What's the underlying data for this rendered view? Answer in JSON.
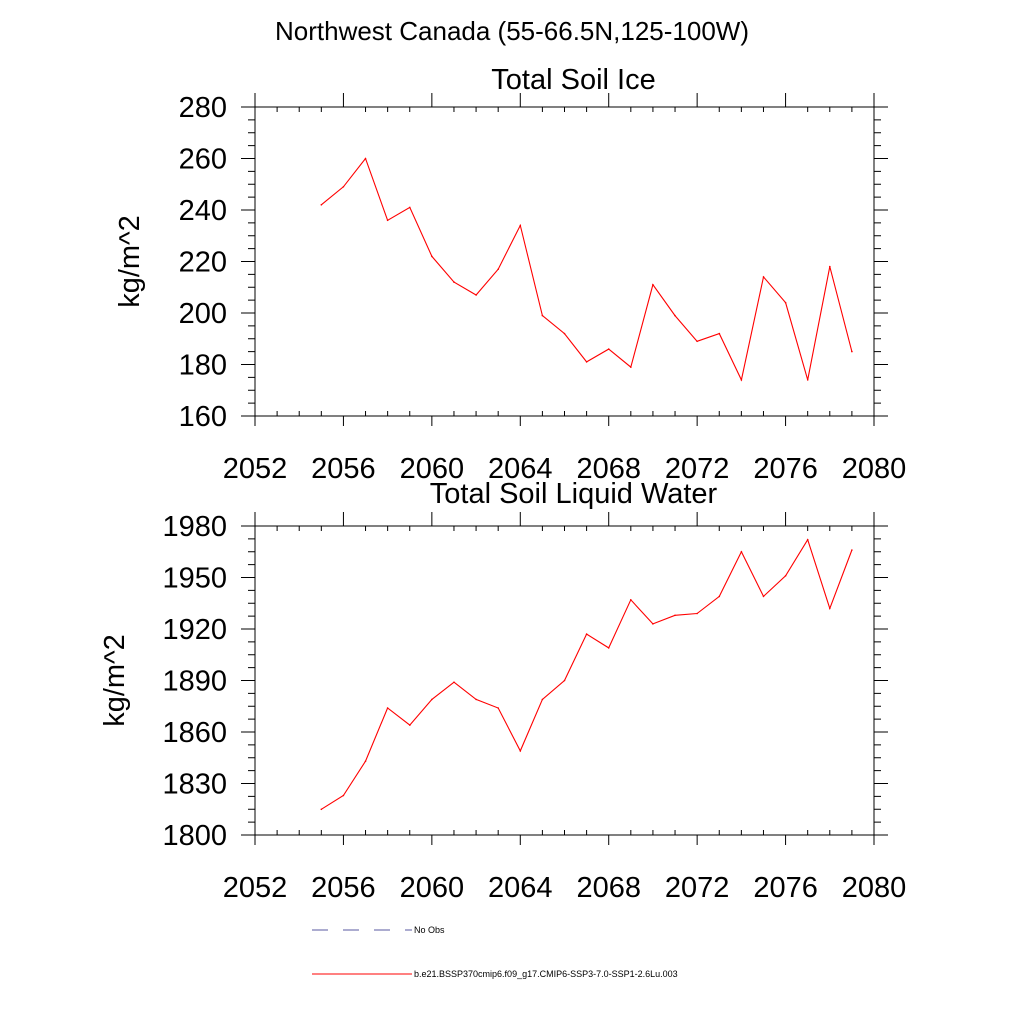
{
  "figure_title": "Northwest Canada (55-66.5N,125-100W)",
  "chart_data": [
    {
      "type": "line",
      "title": "Total Soil Ice",
      "xlabel": "",
      "ylabel": "kg/m^2",
      "xlim": [
        2052,
        2080
      ],
      "ylim": [
        160,
        280
      ],
      "xticks": [
        2052,
        2056,
        2060,
        2064,
        2068,
        2072,
        2076,
        2080
      ],
      "yticks": [
        160,
        180,
        200,
        220,
        240,
        260,
        280
      ],
      "x": [
        2055,
        2056,
        2057,
        2058,
        2059,
        2060,
        2061,
        2062,
        2063,
        2064,
        2065,
        2066,
        2067,
        2068,
        2069,
        2070,
        2071,
        2072,
        2073,
        2074,
        2075,
        2076,
        2077,
        2078,
        2079
      ],
      "series": [
        {
          "name": "b.e21.BSSP370cmip6.f09_g17.CMIP6-SSP3-7.0-SSP1-2.6Lu.003",
          "color": "#ff0000",
          "values": [
            242,
            249,
            260,
            236,
            241,
            222,
            212,
            207,
            217,
            234,
            199,
            192,
            181,
            186,
            179,
            211,
            199,
            189,
            192,
            174,
            214,
            204,
            174,
            218,
            185
          ]
        }
      ]
    },
    {
      "type": "line",
      "title": "Total Soil Liquid Water",
      "xlabel": "",
      "ylabel": "kg/m^2",
      "xlim": [
        2052,
        2080
      ],
      "ylim": [
        1800,
        1980
      ],
      "xticks": [
        2052,
        2056,
        2060,
        2064,
        2068,
        2072,
        2076,
        2080
      ],
      "yticks": [
        1800,
        1830,
        1860,
        1890,
        1920,
        1950,
        1980
      ],
      "x": [
        2055,
        2056,
        2057,
        2058,
        2059,
        2060,
        2061,
        2062,
        2063,
        2064,
        2065,
        2066,
        2067,
        2068,
        2069,
        2070,
        2071,
        2072,
        2073,
        2074,
        2075,
        2076,
        2077,
        2078,
        2079
      ],
      "series": [
        {
          "name": "b.e21.BSSP370cmip6.f09_g17.CMIP6-SSP3-7.0-SSP1-2.6Lu.003",
          "color": "#ff0000",
          "values": [
            1815,
            1823,
            1843,
            1874,
            1864,
            1879,
            1889,
            1879,
            1874,
            1849,
            1879,
            1890,
            1917,
            1909,
            1937,
            1923,
            1928,
            1929,
            1939,
            1965,
            1939,
            1951,
            1972,
            1932,
            1966
          ]
        }
      ]
    }
  ],
  "legend": {
    "entries": [
      {
        "label": "No Obs",
        "color": "#5a5aa0",
        "style": "dashed"
      },
      {
        "label": "b.e21.BSSP370cmip6.f09_g17.CMIP6-SSP3-7.0-SSP1-2.6Lu.003",
        "color": "#ff0000",
        "style": "solid"
      }
    ]
  }
}
